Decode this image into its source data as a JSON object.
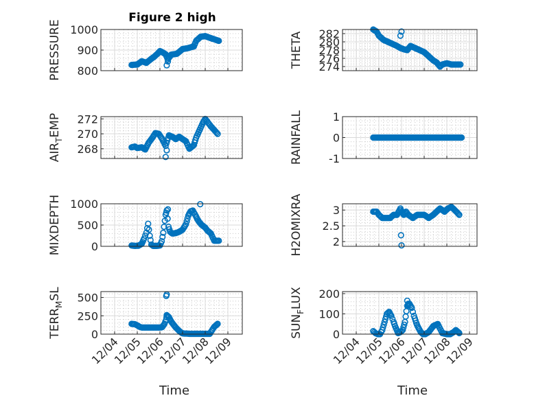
{
  "figure": {
    "title": "Figure 2 high",
    "marker_color": "#0072bd",
    "marker": "circle-open",
    "grid": true,
    "x_tick_labels": [
      "12/04",
      "12/05",
      "12/06",
      "12/07",
      "12/08",
      "12/09"
    ],
    "x_label": "Time"
  },
  "chart_data": [
    {
      "type": "scatter",
      "name": "PRESSURE",
      "ylabel": "PRESSURE",
      "ylabel_sub": "",
      "ylabel_tail": "",
      "title": "Figure 2 high",
      "xlabel": "",
      "grid": true,
      "xlim": [
        0,
        5
      ],
      "ylim": [
        800,
        1000
      ],
      "yticks": [
        800,
        900,
        1000
      ],
      "ytick_labels": [
        "800",
        "900",
        "1000"
      ],
      "x_ticks": [
        0,
        1,
        2,
        3,
        4,
        5
      ],
      "series": [
        {
          "x": [
            0.75,
            1.0,
            1.2,
            1.4,
            1.6,
            1.75,
            1.9,
            2.0,
            2.1,
            2.25,
            2.35,
            2.5,
            2.75,
            3.0,
            3.25,
            3.5,
            3.6,
            3.8,
            4.0,
            4.25,
            4.6
          ],
          "y": [
            828,
            830,
            846,
            838,
            856,
            868,
            883,
            895,
            890,
            880,
            855,
            878,
            882,
            905,
            910,
            918,
            945,
            965,
            968,
            958,
            945
          ]
        },
        {
          "x": [
            2.3,
            2.35
          ],
          "y": [
            826,
            845
          ]
        }
      ]
    },
    {
      "type": "scatter",
      "name": "THETA",
      "ylabel": "THETA",
      "ylabel_sub": "",
      "ylabel_tail": "",
      "xlabel": "",
      "grid": true,
      "xlim": [
        0,
        5
      ],
      "ylim": [
        273,
        283
      ],
      "yticks": [
        274,
        276,
        278,
        280,
        282
      ],
      "ytick_labels": [
        "274",
        "276",
        "278",
        "280",
        "282"
      ],
      "x_ticks": [
        0,
        1,
        2,
        3,
        4,
        5
      ],
      "series": [
        {
          "x": [
            0.75,
            0.9,
            1.0,
            1.2,
            1.4,
            1.6,
            1.8,
            1.95,
            2.1,
            2.25,
            2.4,
            2.6,
            2.8,
            3.0,
            3.2,
            3.4,
            3.55,
            3.7,
            3.8,
            4.0,
            4.2,
            4.5,
            4.6
          ],
          "y": [
            283,
            282.5,
            281.5,
            280.5,
            280,
            279.5,
            279,
            278.5,
            278.2,
            278,
            279,
            278.5,
            278,
            277.5,
            276.5,
            275.5,
            275,
            274,
            274.5,
            274.8,
            274.5,
            274.5,
            274.5
          ]
        },
        {
          "x": [
            1.95,
            2.0
          ],
          "y": [
            281.5,
            282.5
          ]
        }
      ]
    },
    {
      "type": "scatter",
      "name": "AIR_TEMP",
      "ylabel": "AIR",
      "ylabel_sub": "T",
      "ylabel_tail": "EMP",
      "xlabel": "",
      "grid": true,
      "xlim": [
        0,
        5
      ],
      "ylim": [
        266.7,
        272.3
      ],
      "yticks": [
        268,
        270,
        272
      ],
      "ytick_labels": [
        "268",
        "270",
        "272"
      ],
      "x_ticks": [
        0,
        1,
        2,
        3,
        4,
        5
      ],
      "series": [
        {
          "x": [
            0.75,
            0.9,
            1.0,
            1.2,
            1.35,
            1.5,
            1.65,
            1.8,
            1.95,
            2.1,
            2.25,
            2.4,
            2.55,
            2.7,
            2.85,
            3.0,
            3.15,
            3.3,
            3.5,
            3.6,
            3.75,
            3.9,
            4.0,
            4.25,
            4.55
          ],
          "y": [
            268.2,
            268.3,
            268.1,
            268.2,
            267.9,
            268.8,
            269.4,
            270.1,
            270.0,
            269.3,
            268.4,
            269.8,
            269.6,
            269.3,
            269.6,
            269.3,
            269.0,
            268.0,
            268.5,
            269.5,
            270.5,
            271.5,
            272.0,
            271.0,
            270.0
          ]
        },
        {
          "x": [
            2.25,
            2.3
          ],
          "y": [
            266.9,
            267.8
          ]
        }
      ]
    },
    {
      "type": "scatter",
      "name": "RAINFALL",
      "ylabel": "RAINFALL",
      "ylabel_sub": "",
      "ylabel_tail": "",
      "xlabel": "",
      "grid": true,
      "xlim": [
        0,
        5
      ],
      "ylim": [
        -1,
        1
      ],
      "yticks": [
        -1,
        0,
        1
      ],
      "ytick_labels": [
        "-1",
        "0",
        "1"
      ],
      "x_ticks": [
        0,
        1,
        2,
        3,
        4,
        5
      ],
      "series": [
        {
          "x": [
            0.75,
            4.65
          ],
          "y": [
            0,
            0
          ]
        }
      ]
    },
    {
      "type": "scatter",
      "name": "MIXDEPTH",
      "ylabel": "MIXDEPTH",
      "ylabel_sub": "",
      "ylabel_tail": "",
      "xlabel": "",
      "grid": true,
      "xlim": [
        0,
        5
      ],
      "ylim": [
        0,
        1000
      ],
      "yticks": [
        0,
        500,
        1000
      ],
      "ytick_labels": [
        "0",
        "500",
        "1000"
      ],
      "x_ticks": [
        0,
        1,
        2,
        3,
        4,
        5
      ],
      "series": [
        {
          "x": [
            0.75,
            0.9,
            1.05,
            1.2,
            1.3,
            1.4,
            1.48,
            1.55,
            1.62,
            1.7,
            1.85,
            2.0,
            2.08,
            2.15,
            2.25,
            2.3,
            2.38,
            2.45,
            2.55,
            2.7,
            2.85,
            3.0,
            3.15,
            3.25,
            3.35,
            3.45,
            3.55,
            3.65,
            3.75,
            3.85,
            4.0,
            4.1,
            4.25,
            4.4,
            4.5,
            4.6
          ],
          "y": [
            20,
            10,
            15,
            60,
            180,
            320,
            530,
            250,
            40,
            10,
            10,
            20,
            120,
            320,
            740,
            840,
            460,
            340,
            300,
            310,
            340,
            390,
            520,
            720,
            820,
            840,
            750,
            640,
            560,
            500,
            440,
            370,
            300,
            130,
            130,
            130
          ]
        },
        {
          "x": [
            2.35,
            3.78
          ],
          "y": [
            870,
            990
          ]
        }
      ]
    },
    {
      "type": "scatter",
      "name": "H2OMIXRA",
      "ylabel": "H2OMIXRA",
      "ylabel_sub": "",
      "ylabel_tail": "",
      "xlabel": "",
      "grid": true,
      "xlim": [
        0,
        5
      ],
      "ylim": [
        1.85,
        3.2
      ],
      "yticks": [
        2,
        2.5,
        3
      ],
      "ytick_labels": [
        "2",
        "2.5",
        "3"
      ],
      "x_ticks": [
        0,
        1,
        2,
        3,
        4,
        5
      ],
      "series": [
        {
          "x": [
            0.75,
            0.9,
            1.0,
            1.15,
            1.3,
            1.5,
            1.65,
            1.8,
            1.95,
            2.0,
            2.1,
            2.2,
            2.3,
            2.5,
            2.7,
            2.9,
            3.0,
            3.2,
            3.4,
            3.55,
            3.7,
            3.9,
            4.05,
            4.2,
            4.35,
            4.55
          ],
          "y": [
            2.95,
            2.95,
            2.85,
            2.75,
            2.75,
            2.75,
            2.85,
            2.85,
            3.05,
            2.95,
            2.85,
            2.95,
            2.85,
            2.75,
            2.85,
            2.85,
            2.85,
            2.75,
            2.85,
            2.95,
            3.05,
            2.95,
            3.05,
            3.1,
            3.0,
            2.85
          ]
        },
        {
          "x": [
            1.98,
            2.0
          ],
          "y": [
            2.2,
            1.88
          ]
        }
      ]
    },
    {
      "type": "scatter",
      "name": "TERR_MSL",
      "ylabel": "TERR",
      "ylabel_sub": "M",
      "ylabel_tail": "SL",
      "xlabel": "Time",
      "grid": true,
      "xlim": [
        0,
        5
      ],
      "ylim": [
        0,
        580
      ],
      "yticks": [
        0,
        250,
        500
      ],
      "ytick_labels": [
        "0",
        "250",
        "500"
      ],
      "x_ticks": [
        0,
        1,
        2,
        3,
        4,
        5
      ],
      "x_tick_labels": [
        "12/04",
        "12/05",
        "12/06",
        "12/07",
        "12/08",
        "12/09"
      ],
      "series": [
        {
          "x": [
            0.75,
            0.9,
            1.0,
            1.1,
            1.2,
            1.5,
            1.8,
            2.0,
            2.1,
            2.2,
            2.28,
            2.3,
            2.4,
            2.5,
            2.6,
            2.7,
            2.8,
            2.9,
            3.0,
            3.3,
            3.6,
            3.9,
            4.2,
            4.4,
            4.55
          ],
          "y": [
            140,
            135,
            120,
            100,
            90,
            90,
            90,
            90,
            95,
            140,
            200,
            260,
            230,
            170,
            130,
            90,
            60,
            30,
            10,
            5,
            5,
            5,
            5,
            100,
            140
          ]
        },
        {
          "x": [
            2.28,
            2.3
          ],
          "y": [
            520,
            540
          ]
        }
      ]
    },
    {
      "type": "scatter",
      "name": "SUN_FLUX",
      "ylabel": "SUN",
      "ylabel_sub": "F",
      "ylabel_tail": "LUX",
      "xlabel": "Time",
      "grid": true,
      "xlim": [
        0,
        5
      ],
      "ylim": [
        0,
        210
      ],
      "yticks": [
        0,
        100,
        200
      ],
      "ytick_labels": [
        "0",
        "100",
        "200"
      ],
      "x_ticks": [
        0,
        1,
        2,
        3,
        4,
        5
      ],
      "x_tick_labels": [
        "12/04",
        "12/05",
        "12/06",
        "12/07",
        "12/08",
        "12/09"
      ],
      "series": [
        {
          "x": [
            0.75,
            0.85,
            0.95,
            1.05,
            1.15,
            1.25,
            1.35,
            1.45,
            1.55,
            1.65,
            1.75,
            1.85,
            1.95,
            2.05,
            2.15,
            2.25,
            2.35,
            2.45,
            2.55,
            2.65,
            2.75,
            2.85,
            2.95,
            3.05,
            3.2,
            3.4,
            3.6,
            3.8,
            4.0,
            4.15,
            4.3,
            4.4,
            4.55
          ],
          "y": [
            15,
            5,
            0,
            0,
            20,
            60,
            100,
            110,
            90,
            60,
            30,
            5,
            10,
            20,
            60,
            140,
            150,
            130,
            90,
            55,
            30,
            10,
            0,
            0,
            10,
            40,
            50,
            5,
            0,
            0,
            10,
            20,
            5
          ]
        },
        {
          "x": [
            2.25,
            2.3
          ],
          "y": [
            165,
            150
          ]
        }
      ]
    }
  ]
}
